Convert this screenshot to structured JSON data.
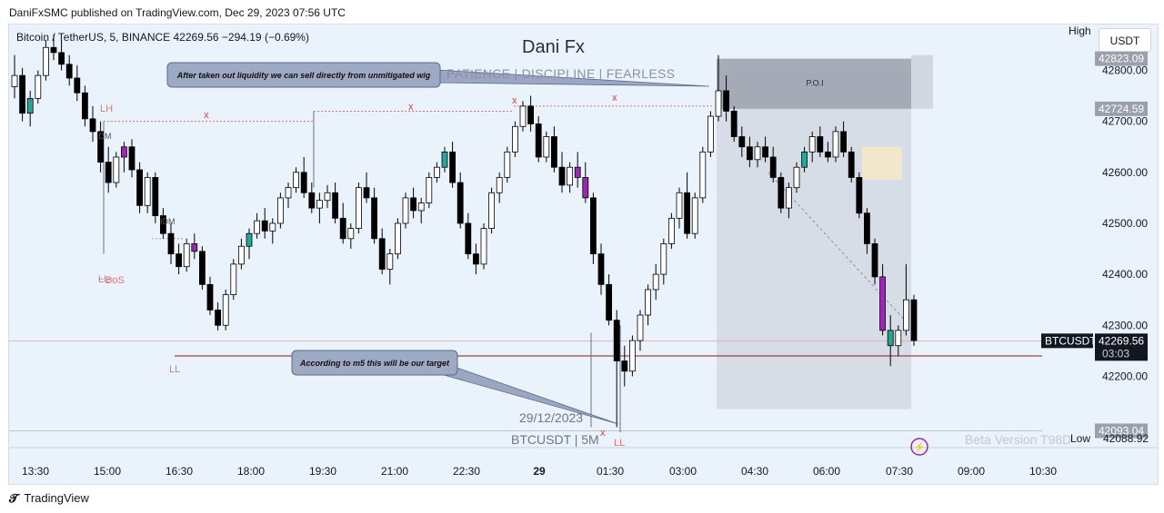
{
  "header": {
    "published": "DaniFxSMC published on TradingView.com, Dec 29, 2023 07:56 UTC"
  },
  "legend": {
    "symbol_line": "Bitcoin / TetherUS, 5, BINANCE  42269.56  −294.19 (−0.69%)"
  },
  "toolbar": {
    "high_label": "High",
    "low_label": "Low",
    "low_value": "42088.92",
    "currency": "USDT"
  },
  "watermark": {
    "title": "Dani Fx",
    "subtitle": "PATIENCE  |  DISCIPLINE  |  FEARLESS",
    "date": "29/12/2023",
    "symbol": "BTCUSDT | 5M",
    "beta": "Beta Version T98D"
  },
  "footer": {
    "brand": "TradingView"
  },
  "colors": {
    "up": "#ffffff",
    "down": "#000000",
    "highlight_purple": "#9c27b0",
    "highlight_teal": "#26a69a",
    "red_label": "#e57373",
    "target_line": "#8b1c1c"
  },
  "chart_data": {
    "type": "candlestick",
    "symbol": "BTCUSDT",
    "timeframe": "5",
    "x_ticks": [
      "13:30",
      "15:00",
      "16:30",
      "18:00",
      "19:30",
      "21:00",
      "22:30",
      "29",
      "01:30",
      "03:00",
      "04:30",
      "06:00",
      "07:30",
      "09:00",
      "10:30"
    ],
    "y_ticks": [
      42800.0,
      42700.0,
      42600.0,
      42500.0,
      42400.0,
      42300.0,
      42200.0
    ],
    "ylim": [
      42060,
      42890
    ],
    "price_labels": {
      "poi_high": "42823.09",
      "poi_low": "42724.59",
      "last_price": "42269.56",
      "countdown": "03:03",
      "last_symbol": "BTCUSDT",
      "range_low": "42093.04"
    },
    "annotations": {
      "callout_top": "After taken out liquidity we can sell directly from unmitigated wig",
      "callout_bottom": "According to m5 this will be our target",
      "poi": "P.O.I",
      "lh": "LH",
      "ll_left": "LL",
      "ll_bottom": "LL",
      "bos": "BoS",
      "idm_1": "IDM",
      "idm_2": "IDM",
      "x_marker": "x",
      "dashes": "– –"
    },
    "levels": {
      "poi_zone": [
        42724.59,
        42823.09
      ],
      "range_low": 42093.04,
      "target_line": 42240,
      "last_price": 42269.56
    },
    "candles": [
      [
        42768,
        42830,
        42745,
        42790
      ],
      [
        42790,
        42805,
        42700,
        42716
      ],
      [
        42716,
        42760,
        42690,
        42745
      ],
      [
        42745,
        42800,
        42735,
        42790
      ],
      [
        42790,
        42860,
        42780,
        42845
      ],
      [
        42845,
        42870,
        42820,
        42835
      ],
      [
        42835,
        42860,
        42800,
        42812
      ],
      [
        42812,
        42830,
        42770,
        42785
      ],
      [
        42785,
        42810,
        42740,
        42756
      ],
      [
        42756,
        42770,
        42690,
        42705
      ],
      [
        42705,
        42730,
        42660,
        42680
      ],
      [
        42680,
        42700,
        42600,
        42620
      ],
      [
        42620,
        42650,
        42560,
        42580
      ],
      [
        42580,
        42640,
        42570,
        42630
      ],
      [
        42630,
        42660,
        42600,
        42650
      ],
      [
        42650,
        42665,
        42590,
        42605
      ],
      [
        42605,
        42620,
        42520,
        42535
      ],
      [
        42535,
        42600,
        42520,
        42590
      ],
      [
        42590,
        42600,
        42500,
        42515
      ],
      [
        42515,
        42530,
        42470,
        42480
      ],
      [
        42480,
        42500,
        42420,
        42440
      ],
      [
        42440,
        42460,
        42400,
        42415
      ],
      [
        42415,
        42470,
        42405,
        42460
      ],
      [
        42460,
        42480,
        42430,
        42445
      ],
      [
        42445,
        42455,
        42370,
        42380
      ],
      [
        42380,
        42395,
        42320,
        42330
      ],
      [
        42330,
        42345,
        42290,
        42300
      ],
      [
        42300,
        42370,
        42290,
        42360
      ],
      [
        42360,
        42430,
        42350,
        42420
      ],
      [
        42420,
        42470,
        42410,
        42455
      ],
      [
        42455,
        42490,
        42430,
        42480
      ],
      [
        42480,
        42520,
        42470,
        42505
      ],
      [
        42505,
        42530,
        42470,
        42485
      ],
      [
        42485,
        42510,
        42460,
        42500
      ],
      [
        42500,
        42560,
        42490,
        42550
      ],
      [
        42550,
        42580,
        42530,
        42570
      ],
      [
        42570,
        42610,
        42560,
        42600
      ],
      [
        42600,
        42630,
        42550,
        42560
      ],
      [
        42560,
        42580,
        42520,
        42530
      ],
      [
        42530,
        42560,
        42500,
        42545
      ],
      [
        42545,
        42575,
        42530,
        42560
      ],
      [
        42560,
        42580,
        42500,
        42510
      ],
      [
        42510,
        42540,
        42460,
        42470
      ],
      [
        42470,
        42500,
        42450,
        42490
      ],
      [
        42490,
        42580,
        42480,
        42570
      ],
      [
        42570,
        42600,
        42540,
        42550
      ],
      [
        42550,
        42570,
        42460,
        42470
      ],
      [
        42470,
        42490,
        42400,
        42410
      ],
      [
        42410,
        42450,
        42380,
        42440
      ],
      [
        42440,
        42510,
        42430,
        42500
      ],
      [
        42500,
        42560,
        42490,
        42550
      ],
      [
        42550,
        42570,
        42510,
        42525
      ],
      [
        42525,
        42550,
        42500,
        42540
      ],
      [
        42540,
        42600,
        42530,
        42590
      ],
      [
        42590,
        42620,
        42580,
        42610
      ],
      [
        42610,
        42650,
        42600,
        42640
      ],
      [
        42640,
        42660,
        42570,
        42580
      ],
      [
        42580,
        42600,
        42490,
        42500
      ],
      [
        42500,
        42520,
        42430,
        42440
      ],
      [
        42440,
        42460,
        42400,
        42420
      ],
      [
        42420,
        42500,
        42410,
        42490
      ],
      [
        42490,
        42570,
        42480,
        42560
      ],
      [
        42560,
        42600,
        42540,
        42590
      ],
      [
        42590,
        42650,
        42580,
        42640
      ],
      [
        42640,
        42700,
        42630,
        42690
      ],
      [
        42690,
        42740,
        42680,
        42730
      ],
      [
        42730,
        42750,
        42680,
        42695
      ],
      [
        42695,
        42710,
        42620,
        42630
      ],
      [
        42630,
        42680,
        42620,
        42670
      ],
      [
        42670,
        42690,
        42600,
        42610
      ],
      [
        42610,
        42640,
        42560,
        42575
      ],
      [
        42575,
        42620,
        42560,
        42610
      ],
      [
        42610,
        42640,
        42570,
        42590
      ],
      [
        42590,
        42620,
        42540,
        42550
      ],
      [
        42550,
        42560,
        42420,
        42440
      ],
      [
        42440,
        42460,
        42360,
        42380
      ],
      [
        42380,
        42400,
        42300,
        42310
      ],
      [
        42310,
        42330,
        42100,
        42230
      ],
      [
        42230,
        42260,
        42180,
        42210
      ],
      [
        42210,
        42280,
        42200,
        42270
      ],
      [
        42270,
        42330,
        42250,
        42320
      ],
      [
        42320,
        42380,
        42300,
        42370
      ],
      [
        42370,
        42420,
        42350,
        42400
      ],
      [
        42400,
        42470,
        42380,
        42460
      ],
      [
        42460,
        42520,
        42450,
        42510
      ],
      [
        42510,
        42570,
        42490,
        42560
      ],
      [
        42560,
        42600,
        42470,
        42480
      ],
      [
        42480,
        42560,
        42470,
        42550
      ],
      [
        42550,
        42650,
        42540,
        42640
      ],
      [
        42640,
        42720,
        42630,
        42710
      ],
      [
        42710,
        42830,
        42700,
        42760
      ],
      [
        42760,
        42790,
        42700,
        42720
      ],
      [
        42720,
        42730,
        42660,
        42670
      ],
      [
        42670,
        42690,
        42630,
        42650
      ],
      [
        42650,
        42670,
        42610,
        42625
      ],
      [
        42625,
        42660,
        42610,
        42650
      ],
      [
        42650,
        42670,
        42620,
        42630
      ],
      [
        42630,
        42650,
        42580,
        42590
      ],
      [
        42590,
        42600,
        42520,
        42530
      ],
      [
        42530,
        42580,
        42510,
        42570
      ],
      [
        42570,
        42620,
        42560,
        42610
      ],
      [
        42610,
        42650,
        42600,
        42640
      ],
      [
        42640,
        42680,
        42620,
        42670
      ],
      [
        42670,
        42690,
        42630,
        42640
      ],
      [
        42640,
        42660,
        42620,
        42630
      ],
      [
        42630,
        42690,
        42620,
        42680
      ],
      [
        42680,
        42700,
        42630,
        42640
      ],
      [
        42640,
        42650,
        42580,
        42590
      ],
      [
        42590,
        42600,
        42510,
        42520
      ],
      [
        42520,
        42530,
        42440,
        42460
      ],
      [
        42460,
        42470,
        42380,
        42395
      ],
      [
        42395,
        42420,
        42280,
        42290
      ],
      [
        42290,
        42320,
        42220,
        42260
      ],
      [
        42260,
        42300,
        42240,
        42290
      ],
      [
        42290,
        42420,
        42280,
        42350
      ],
      [
        42350,
        42360,
        42260,
        42270
      ]
    ]
  }
}
